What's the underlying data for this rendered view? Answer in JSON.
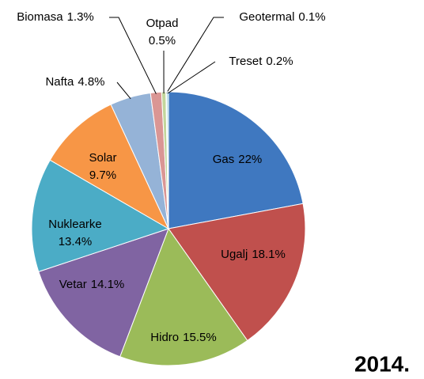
{
  "chart_data": {
    "type": "pie",
    "title": "2014.",
    "categories": [
      "Gas",
      "Ugalj",
      "Hidro",
      "Vetar",
      "Nuklearke",
      "Solar",
      "Nafta",
      "Biomasa",
      "Otpad",
      "Geotermal",
      "Treset"
    ],
    "values": [
      22,
      18.1,
      15.5,
      14.1,
      13.4,
      9.7,
      4.8,
      1.3,
      0.5,
      0.1,
      0.2
    ],
    "value_labels": [
      "22%",
      "18.1%",
      "15.5%",
      "14.1%",
      "13.4%",
      "9.7%",
      "4.8%",
      "1.3%",
      "0.5%",
      "0.1%",
      "0.2%"
    ],
    "colors": [
      "#3f78c0",
      "#c0504d",
      "#9bbb59",
      "#8064a2",
      "#4bacc6",
      "#f79646",
      "#95b3d7",
      "#da9694",
      "#c3d69b",
      "#b3a2c7",
      "#92cddc"
    ]
  }
}
